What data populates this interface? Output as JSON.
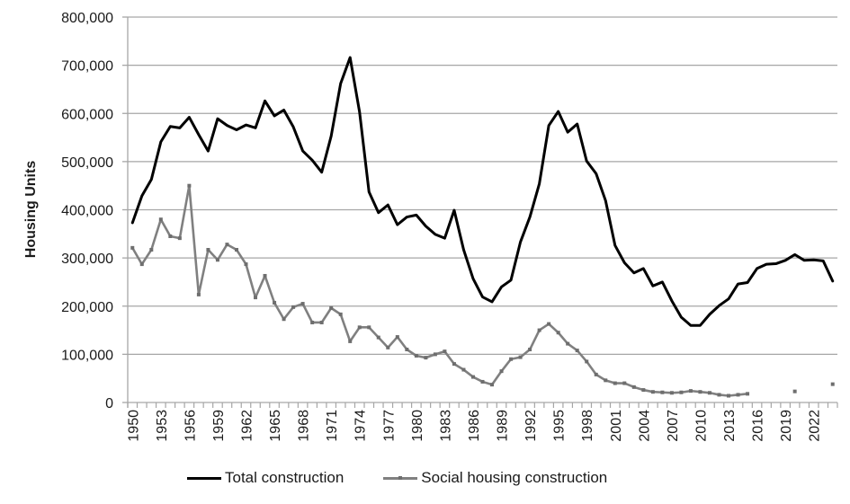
{
  "chart_data": {
    "type": "line",
    "title": "",
    "xlabel": "",
    "ylabel": "Housing Units",
    "ylim": [
      0,
      800000
    ],
    "yticks": [
      0,
      100000,
      200000,
      300000,
      400000,
      500000,
      600000,
      700000,
      800000
    ],
    "ytick_labels": [
      "0",
      "100,000",
      "200,000",
      "300,000",
      "400,000",
      "500,000",
      "600,000",
      "700,000",
      "800,000"
    ],
    "xtick_labels": [
      "1950",
      "1953",
      "1956",
      "1959",
      "1962",
      "1965",
      "1968",
      "1971",
      "1974",
      "1977",
      "1980",
      "1983",
      "1986",
      "1989",
      "1992",
      "1995",
      "1998",
      "2001",
      "2004",
      "2007",
      "2010",
      "2013",
      "2016",
      "2019",
      "2022"
    ],
    "grid": "horizontal",
    "legend_position": "bottom",
    "x": [
      1950,
      1951,
      1952,
      1953,
      1954,
      1955,
      1956,
      1957,
      1958,
      1959,
      1960,
      1961,
      1962,
      1963,
      1964,
      1965,
      1966,
      1967,
      1968,
      1969,
      1970,
      1971,
      1972,
      1973,
      1974,
      1975,
      1976,
      1977,
      1978,
      1979,
      1980,
      1981,
      1982,
      1983,
      1984,
      1985,
      1986,
      1987,
      1988,
      1989,
      1990,
      1991,
      1992,
      1993,
      1994,
      1995,
      1996,
      1997,
      1998,
      1999,
      2000,
      2001,
      2002,
      2003,
      2004,
      2005,
      2006,
      2007,
      2008,
      2009,
      2010,
      2011,
      2012,
      2013,
      2014,
      2015,
      2016,
      2017,
      2018,
      2019,
      2020,
      2021,
      2022,
      2023,
      2024
    ],
    "series": [
      {
        "name": "Total construction",
        "color": "#000000",
        "values": [
          373000,
          429000,
          463000,
          541000,
          573000,
          570000,
          592000,
          556000,
          522000,
          589000,
          575000,
          566000,
          576000,
          570000,
          626000,
          595000,
          607000,
          572000,
          522000,
          503000,
          478000,
          553000,
          662000,
          716000,
          603000,
          437000,
          394000,
          410000,
          369000,
          385000,
          389000,
          366000,
          349000,
          341000,
          399000,
          317000,
          257000,
          219000,
          209000,
          240000,
          254000,
          333000,
          385000,
          454000,
          575000,
          604000,
          561000,
          578000,
          501000,
          475000,
          419000,
          326000,
          290000,
          269000,
          278000,
          242000,
          250000,
          211000,
          177000,
          160000,
          160000,
          183000,
          201000,
          215000,
          246000,
          249000,
          278000,
          287000,
          288000,
          295000,
          307000,
          295000,
          296000,
          294000,
          252000
        ]
      },
      {
        "name": "Social housing construction",
        "color": "#808080",
        "values": [
          321000,
          287000,
          317000,
          380000,
          345000,
          341000,
          450000,
          224000,
          317000,
          296000,
          328000,
          317000,
          287000,
          218000,
          263000,
          207000,
          173000,
          198000,
          205000,
          166000,
          166000,
          196000,
          183000,
          127000,
          156000,
          156000,
          135000,
          114000,
          136000,
          110000,
          97000,
          93000,
          100000,
          106000,
          80000,
          68000,
          53000,
          43000,
          37000,
          65000,
          90000,
          94000,
          110000,
          150000,
          163000,
          145000,
          122000,
          108000,
          85000,
          58000,
          46000,
          40000,
          40000,
          32000,
          26000,
          22000,
          21000,
          20000,
          21000,
          24000,
          22000,
          20000,
          16000,
          14000,
          16000,
          18000,
          null,
          null,
          null,
          null,
          23000,
          null,
          null,
          null,
          38000
        ]
      }
    ]
  }
}
